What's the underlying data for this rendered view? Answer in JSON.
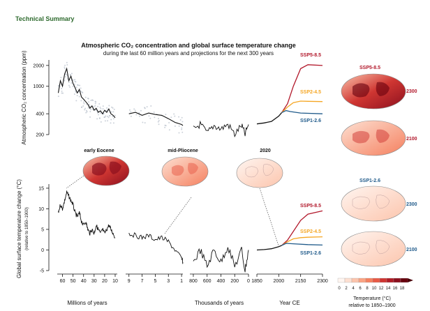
{
  "header": "Technical Summary",
  "title": "Atmospheric CO₂ concentration and global surface temperature change",
  "subtitle": "during the last 60 million years and projections for the next 300 years",
  "colors": {
    "ssp585": "#b2182b",
    "ssp245": "#f5a623",
    "ssp126": "#1f5a8a",
    "series": "#111111",
    "scatter": "#aab4c2"
  },
  "chart_data": {
    "type": "line",
    "co2_panel": {
      "ylabel": "Atmospheric CO₂ concentration (ppm)",
      "yscale": "log",
      "ylim": [
        200,
        2400
      ],
      "yticks": [
        200,
        400,
        1000,
        2000
      ]
    },
    "temp_panel": {
      "ylabel": "Global surface temperature change (°C)",
      "ylabel_sub": "(relative to 1850–1900)",
      "ylim": [
        -5,
        16
      ],
      "yticks": [
        -5,
        0,
        5,
        10,
        15
      ]
    },
    "segments": [
      {
        "xlabel": "Millions of years",
        "tick_labels": [
          "60",
          "50",
          "40",
          "30",
          "20",
          "10"
        ]
      },
      {
        "xlabel": "",
        "tick_labels": [
          "9",
          "7",
          "5",
          "3",
          "1"
        ]
      },
      {
        "xlabel": "Thousands of years",
        "tick_labels": [
          "800",
          "600",
          "400",
          "200",
          "0"
        ]
      },
      {
        "xlabel": "Year CE",
        "tick_labels": [
          "1850",
          "2000",
          "2150",
          "2300"
        ]
      }
    ],
    "series": [
      {
        "name": "SSP5-8.5",
        "co2_2300": 2000,
        "temp_2300": 9.5
      },
      {
        "name": "SSP2-4.5",
        "co2_2300": 600,
        "temp_2300": 3.2
      },
      {
        "name": "SSP1-2.6",
        "co2_2300": 400,
        "temp_2300": 1.2
      }
    ],
    "co2_deep": [
      [
        64,
        800
      ],
      [
        62,
        1200
      ],
      [
        60,
        1000
      ],
      [
        58,
        1500
      ],
      [
        56,
        1800
      ],
      [
        54,
        1200
      ],
      [
        52,
        1400
      ],
      [
        50,
        1100
      ],
      [
        48,
        950
      ],
      [
        46,
        800
      ],
      [
        44,
        900
      ],
      [
        42,
        700
      ],
      [
        40,
        650
      ],
      [
        38,
        600
      ],
      [
        36,
        550
      ],
      [
        34,
        480
      ],
      [
        32,
        520
      ],
      [
        30,
        450
      ],
      [
        28,
        480
      ],
      [
        26,
        420
      ],
      [
        24,
        440
      ],
      [
        22,
        400
      ],
      [
        20,
        450
      ],
      [
        18,
        420
      ],
      [
        16,
        470
      ],
      [
        14,
        400
      ],
      [
        12,
        380
      ],
      [
        10,
        350
      ]
    ],
    "co2_mid": [
      [
        9,
        400
      ],
      [
        8,
        420
      ],
      [
        7,
        380
      ],
      [
        6,
        410
      ],
      [
        5,
        390
      ],
      [
        4,
        380
      ],
      [
        3,
        340
      ],
      [
        2,
        300
      ],
      [
        1,
        280
      ],
      [
        0.8,
        270
      ]
    ],
    "co2_glacial": [
      [
        800,
        240
      ],
      [
        700,
        280
      ],
      [
        600,
        210
      ],
      [
        500,
        270
      ],
      [
        400,
        240
      ],
      [
        300,
        280
      ],
      [
        200,
        200
      ],
      [
        100,
        270
      ],
      [
        50,
        200
      ],
      [
        0,
        280
      ]
    ],
    "co2_modern": [
      [
        1850,
        285
      ],
      [
        1900,
        295
      ],
      [
        1950,
        310
      ],
      [
        2000,
        370
      ],
      [
        2020,
        415
      ]
    ],
    "temp_deep": [
      [
        64,
        9
      ],
      [
        62,
        11
      ],
      [
        60,
        10
      ],
      [
        58,
        12
      ],
      [
        56,
        14
      ],
      [
        54,
        13
      ],
      [
        52,
        12
      ],
      [
        50,
        11
      ],
      [
        48,
        9
      ],
      [
        46,
        8
      ],
      [
        44,
        9
      ],
      [
        42,
        7
      ],
      [
        40,
        6
      ],
      [
        38,
        7
      ],
      [
        36,
        5
      ],
      [
        34,
        4
      ],
      [
        32,
        5
      ],
      [
        30,
        4
      ],
      [
        28,
        6
      ],
      [
        26,
        5
      ],
      [
        24,
        4
      ],
      [
        22,
        5
      ],
      [
        20,
        4
      ],
      [
        18,
        5
      ],
      [
        16,
        6
      ],
      [
        14,
        5
      ],
      [
        12,
        4
      ],
      [
        10,
        3
      ]
    ],
    "temp_mid": [
      [
        9,
        4
      ],
      [
        8,
        3.5
      ],
      [
        7,
        3
      ],
      [
        6,
        3.5
      ],
      [
        5,
        2.5
      ],
      [
        4,
        3
      ],
      [
        3,
        2
      ],
      [
        2,
        0
      ],
      [
        1,
        -2
      ],
      [
        0.8,
        -3
      ]
    ],
    "temp_glacial": [
      [
        800,
        -3
      ],
      [
        700,
        0
      ],
      [
        600,
        -4
      ],
      [
        500,
        0
      ],
      [
        400,
        -3
      ],
      [
        300,
        1
      ],
      [
        200,
        -4
      ],
      [
        100,
        0
      ],
      [
        50,
        -5
      ],
      [
        0,
        0
      ]
    ],
    "temp_modern": [
      [
        1850,
        0
      ],
      [
        1900,
        0.1
      ],
      [
        1950,
        0.3
      ],
      [
        2000,
        0.8
      ],
      [
        2020,
        1.1
      ]
    ],
    "maps": [
      {
        "label": "early Eocene"
      },
      {
        "label": "mid-Pliocene"
      },
      {
        "label": "2020"
      }
    ],
    "right_maps": {
      "ssp585_label": "SSP5-8.5",
      "ssp126_label": "SSP1-2.6",
      "years": [
        "2300",
        "2100"
      ]
    },
    "colorbar": {
      "ticks": [
        "0",
        "2",
        "4",
        "6",
        "8",
        "10",
        "12",
        "14",
        "16",
        "18"
      ],
      "title": "Temperature (°C)",
      "subtitle": "relative to 1850–1900",
      "colors": [
        "#fff5f0",
        "#fde0d2",
        "#fcc5ad",
        "#fba383",
        "#f5805f",
        "#e85a46",
        "#cf3632",
        "#af1d27",
        "#8b0f1e",
        "#67000d"
      ]
    }
  }
}
